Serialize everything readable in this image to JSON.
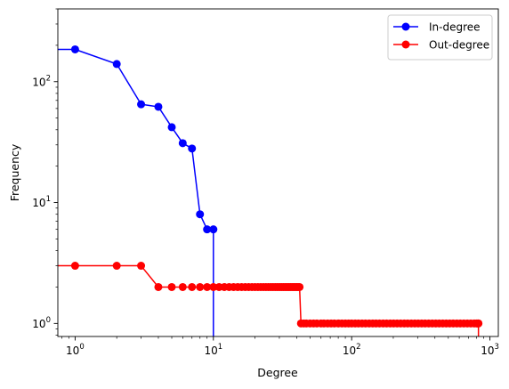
{
  "chart_data": {
    "type": "line",
    "xlabel": "Degree",
    "ylabel": "Frequency",
    "xscale": "log",
    "yscale": "log",
    "xlim": [
      0.75,
      1150
    ],
    "ylim": [
      0.78,
      400
    ],
    "grid": false,
    "legend": "top-right",
    "x_ticks": [
      {
        "value": 1,
        "base": "10",
        "exp": "0"
      },
      {
        "value": 10,
        "base": "10",
        "exp": "1"
      },
      {
        "value": 100,
        "base": "10",
        "exp": "2"
      },
      {
        "value": 1000,
        "base": "10",
        "exp": "3"
      }
    ],
    "y_ticks": [
      {
        "value": 1,
        "base": "10",
        "exp": "0"
      },
      {
        "value": 10,
        "base": "10",
        "exp": "1"
      },
      {
        "value": 100,
        "base": "10",
        "exp": "2"
      }
    ],
    "series": [
      {
        "name": "In-degree",
        "color": "#0000ff",
        "marker": "circle",
        "points": [
          [
            0,
            185
          ],
          [
            1,
            185
          ],
          [
            2,
            140
          ],
          [
            3,
            65
          ],
          [
            4,
            62
          ],
          [
            5,
            42
          ],
          [
            6,
            31
          ],
          [
            7,
            28
          ],
          [
            8,
            8
          ],
          [
            9,
            6
          ],
          [
            10,
            6
          ],
          [
            10,
            0
          ]
        ]
      },
      {
        "name": "Out-degree",
        "color": "#ff0000",
        "marker": "circle",
        "points": [
          [
            0,
            3
          ],
          [
            1,
            3
          ],
          [
            2,
            3
          ],
          [
            3,
            3
          ],
          [
            4,
            2
          ],
          [
            5,
            2
          ],
          [
            6,
            2
          ],
          [
            7,
            2
          ],
          [
            8,
            2
          ],
          [
            9,
            2
          ],
          [
            10,
            2
          ],
          [
            11,
            2
          ],
          [
            12,
            2
          ],
          [
            13,
            2
          ],
          [
            14,
            2
          ],
          [
            15,
            2
          ],
          [
            16,
            2
          ],
          [
            17,
            2
          ],
          [
            18,
            2
          ],
          [
            19,
            2
          ],
          [
            20,
            2
          ],
          [
            21,
            2
          ],
          [
            22,
            2
          ],
          [
            23,
            2
          ],
          [
            24,
            2
          ],
          [
            25,
            2
          ],
          [
            26,
            2
          ],
          [
            27,
            2
          ],
          [
            28,
            2
          ],
          [
            29,
            2
          ],
          [
            30,
            2
          ],
          [
            31,
            2
          ],
          [
            32,
            2
          ],
          [
            33,
            2
          ],
          [
            34,
            2
          ],
          [
            35,
            2
          ],
          [
            36,
            2
          ],
          [
            37,
            2
          ],
          [
            38,
            2
          ],
          [
            39,
            2
          ],
          [
            40,
            2
          ],
          [
            41,
            2
          ],
          [
            42,
            2
          ],
          [
            43,
            1
          ],
          [
            45,
            1
          ],
          [
            47,
            1
          ],
          [
            50,
            1
          ],
          [
            53,
            1
          ],
          [
            56,
            1
          ],
          [
            60,
            1
          ],
          [
            63,
            1
          ],
          [
            67,
            1
          ],
          [
            71,
            1
          ],
          [
            75,
            1
          ],
          [
            80,
            1
          ],
          [
            85,
            1
          ],
          [
            90,
            1
          ],
          [
            95,
            1
          ],
          [
            100,
            1
          ],
          [
            106,
            1
          ],
          [
            112,
            1
          ],
          [
            119,
            1
          ],
          [
            126,
            1
          ],
          [
            134,
            1
          ],
          [
            142,
            1
          ],
          [
            150,
            1
          ],
          [
            159,
            1
          ],
          [
            169,
            1
          ],
          [
            179,
            1
          ],
          [
            190,
            1
          ],
          [
            201,
            1
          ],
          [
            213,
            1
          ],
          [
            226,
            1
          ],
          [
            240,
            1
          ],
          [
            254,
            1
          ],
          [
            270,
            1
          ],
          [
            286,
            1
          ],
          [
            303,
            1
          ],
          [
            321,
            1
          ],
          [
            340,
            1
          ],
          [
            361,
            1
          ],
          [
            383,
            1
          ],
          [
            406,
            1
          ],
          [
            430,
            1
          ],
          [
            456,
            1
          ],
          [
            483,
            1
          ],
          [
            512,
            1
          ],
          [
            543,
            1
          ],
          [
            576,
            1
          ],
          [
            610,
            1
          ],
          [
            647,
            1
          ],
          [
            686,
            1
          ],
          [
            727,
            1
          ],
          [
            770,
            1
          ],
          [
            800,
            1
          ],
          [
            816,
            1
          ],
          [
            823,
            1
          ],
          [
            826,
            1
          ],
          [
            826,
            0
          ]
        ]
      }
    ]
  }
}
